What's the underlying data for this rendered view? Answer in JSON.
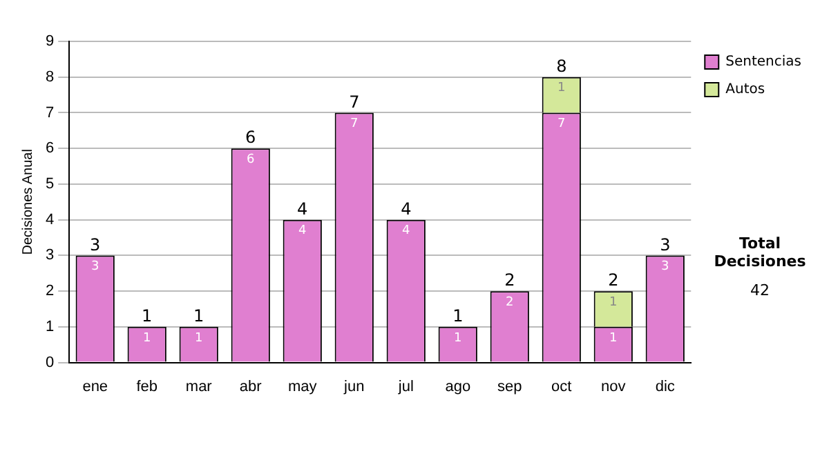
{
  "chart_data": {
    "type": "bar",
    "ylabel": "Decisiones Anual",
    "categories": [
      "ene",
      "feb",
      "mar",
      "abr",
      "may",
      "jun",
      "jul",
      "ago",
      "sep",
      "oct",
      "nov",
      "dic"
    ],
    "series": [
      {
        "name": "Sentencias",
        "color": "#e07fd0",
        "values": [
          3,
          1,
          1,
          6,
          4,
          7,
          4,
          1,
          2,
          7,
          1,
          3
        ]
      },
      {
        "name": "Autos",
        "color": "#d4e89a",
        "values": [
          null,
          null,
          null,
          null,
          null,
          null,
          null,
          null,
          null,
          1,
          1,
          null
        ]
      }
    ],
    "stacked": true,
    "ylim": [
      0,
      9
    ],
    "yticks": [
      0,
      1,
      2,
      3,
      4,
      5,
      6,
      7,
      8,
      9
    ],
    "grid": "y",
    "legend": "right",
    "data_labels": true,
    "totals": [
      "3",
      "1",
      "1",
      "6",
      "4",
      "7",
      "4",
      "1",
      "2",
      "8",
      "2",
      "3"
    ],
    "annotations": [
      "Total Decisiones",
      "42"
    ]
  }
}
